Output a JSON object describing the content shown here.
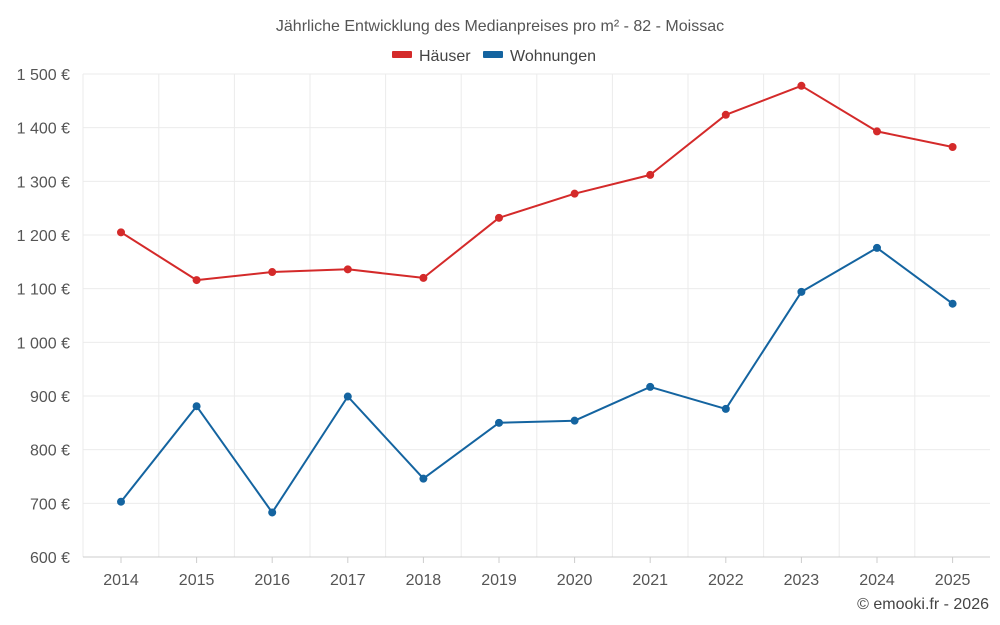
{
  "chart_data": {
    "type": "line",
    "title": "Jährliche Entwicklung des Medianpreises pro m² - 82 - Moissac",
    "categories": [
      "2014",
      "2015",
      "2016",
      "2017",
      "2018",
      "2019",
      "2020",
      "2021",
      "2022",
      "2023",
      "2024",
      "2025"
    ],
    "series": [
      {
        "name": "Häuser",
        "color": "#d42a2a",
        "values": [
          1205,
          1116,
          1131,
          1136,
          1120,
          1232,
          1277,
          1312,
          1424,
          1478,
          1393,
          1364
        ]
      },
      {
        "name": "Wohnungen",
        "color": "#1464a0",
        "values": [
          703,
          881,
          683,
          899,
          746,
          850,
          854,
          917,
          876,
          1094,
          1176,
          1072
        ]
      }
    ],
    "ylim": [
      600,
      1500
    ],
    "yticks": [
      600,
      700,
      800,
      900,
      1000,
      1100,
      1200,
      1300,
      1400,
      1500
    ],
    "ytick_labels": [
      "600 €",
      "700 €",
      "800 €",
      "900 €",
      "1 000 €",
      "1 100 €",
      "1 200 €",
      "1 300 €",
      "1 400 €",
      "1 500 €"
    ],
    "xlabel": "",
    "ylabel": "",
    "grid": true,
    "legend_position": "top-center"
  },
  "credit": "© emooki.fr - 2026"
}
